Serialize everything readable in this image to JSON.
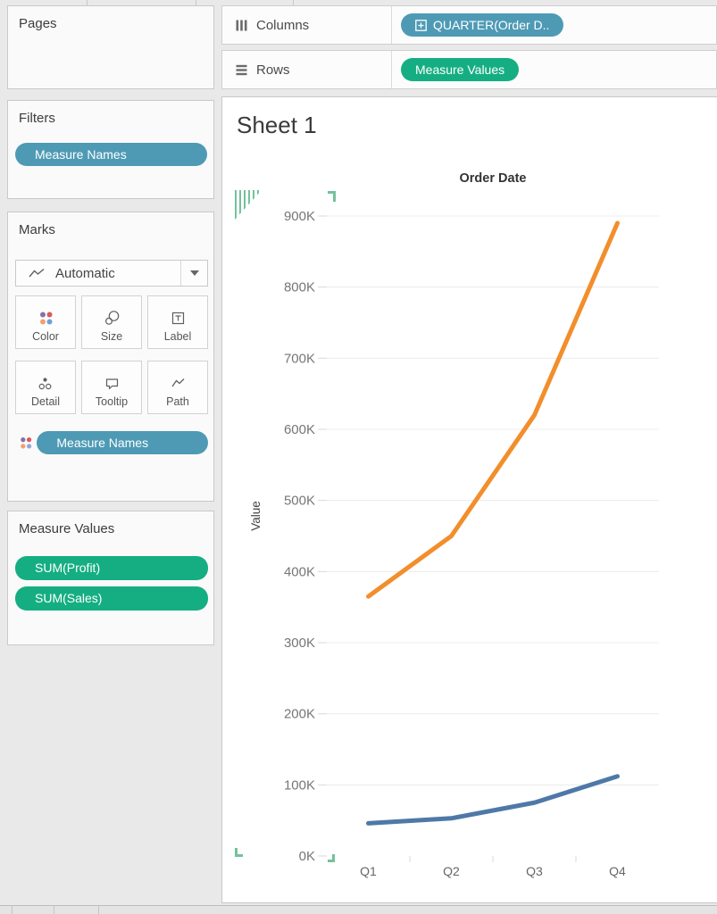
{
  "shelves": {
    "columns_label": "Columns",
    "columns_pill": "QUARTER(Order D..",
    "rows_label": "Rows",
    "rows_pill": "Measure Values"
  },
  "pages": {
    "title": "Pages"
  },
  "filters": {
    "title": "Filters",
    "pills": [
      "Measure Names"
    ]
  },
  "marks": {
    "title": "Marks",
    "mark_type": "Automatic",
    "buttons": [
      {
        "label": "Color"
      },
      {
        "label": "Size"
      },
      {
        "label": "Label"
      },
      {
        "label": "Detail"
      },
      {
        "label": "Tooltip"
      },
      {
        "label": "Path"
      }
    ],
    "encodings": [
      {
        "pill": "Measure Names",
        "icon": "color-dots-icon"
      }
    ]
  },
  "measure_values": {
    "title": "Measure Values",
    "pills": [
      "SUM(Profit)",
      "SUM(Sales)"
    ]
  },
  "sheet": {
    "title": "Sheet 1"
  },
  "colors": {
    "dimension_pill_blue": "#4e9ab5",
    "measure_pill_green": "#15ae82",
    "selection_green": "#74c29b",
    "gridline": "#ececec"
  },
  "chart_data": {
    "type": "line",
    "title": "Order Date",
    "categories": [
      "Q1",
      "Q2",
      "Q3",
      "Q4"
    ],
    "series": [
      {
        "name": "SUM(Sales)",
        "color": "#f28e2b",
        "values": [
          365000,
          450000,
          620000,
          890000
        ]
      },
      {
        "name": "SUM(Profit)",
        "color": "#4e79a7",
        "values": [
          46000,
          53000,
          75000,
          112000
        ]
      }
    ],
    "xlabel": "Order Date",
    "ylabel": "Value",
    "ylim": [
      0,
      900000
    ],
    "ytick_step": 100000,
    "ytick_labels": [
      "0K",
      "100K",
      "200K",
      "300K",
      "400K",
      "500K",
      "600K",
      "700K",
      "800K",
      "900K"
    ],
    "grid": true,
    "legend": "none"
  }
}
